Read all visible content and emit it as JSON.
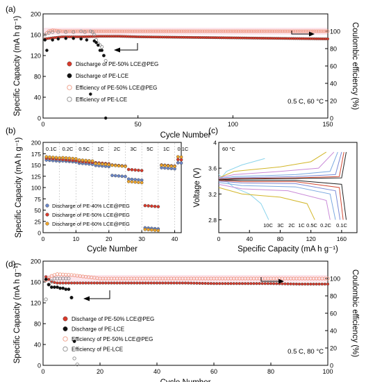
{
  "figure": {
    "panels": [
      {
        "label": "(a)",
        "type": "scatter",
        "xlabel": "Cycle Number",
        "ylabel": "Specific Capacity (mA h g⁻¹)",
        "y2label": "Coulombic efficiency (%)",
        "xlim": [
          0,
          150
        ],
        "ylim": [
          0,
          200
        ],
        "y2lim": [
          0,
          120
        ],
        "xticks": [
          0,
          50,
          100,
          150
        ],
        "yticks": [
          0,
          40,
          80,
          120,
          160,
          200
        ],
        "y2ticks": [
          0,
          20,
          40,
          60,
          80,
          100
        ],
        "condition": "0.5 C, 60 °C",
        "legend": [
          "Discharge of  PE-50% LCE@PEG",
          "Discharge of  PE-LCE",
          "Efficiency of PE-50% LCE@PEG",
          "Efficiency of PE-LCE"
        ]
      },
      {
        "label": "(b)",
        "type": "scatter",
        "xlabel": "Cycle Number",
        "ylabel": "Specific Capacity (mA h g⁻¹)",
        "xlim": [
          0,
          42
        ],
        "ylim": [
          0,
          200
        ],
        "xticks": [
          0,
          10,
          20,
          30,
          40
        ],
        "yticks": [
          0,
          25,
          50,
          75,
          100,
          125,
          150,
          175,
          200
        ],
        "rates": [
          "0.1C",
          "0.2C",
          "0.5C",
          "1C",
          "2C",
          "3C",
          "5C",
          "1C",
          "0.1C"
        ],
        "legend": [
          "Discharge of  PE-40% LCE@PEG",
          "Discharge of  PE-50% LCE@PEG",
          "Discharge of  PE-60% LCE@PEG"
        ]
      },
      {
        "label": "(c)",
        "type": "line",
        "xlabel": "Specific Capacity (mA h g⁻¹)",
        "ylabel": "Voltage (V)",
        "xlim": [
          0,
          180
        ],
        "ylim": [
          2.6,
          4.0
        ],
        "xticks": [
          0,
          40,
          80,
          120,
          160
        ],
        "yticks": [
          2.8,
          3.2,
          3.6,
          4.0
        ],
        "condition": "60 °C",
        "rate_labels": [
          "10C",
          "3C",
          "2C",
          "1C",
          "0.5C",
          "0.2C",
          "0.1C"
        ]
      },
      {
        "label": "(d)",
        "type": "scatter",
        "xlabel": "Cycle Number",
        "ylabel": "Specific Capacity (mA h g⁻¹)",
        "y2label": "Coulombic efficiency (%)",
        "xlim": [
          0,
          100
        ],
        "ylim": [
          0,
          200
        ],
        "y2lim": [
          0,
          120
        ],
        "xticks": [
          0,
          20,
          40,
          60,
          80,
          100
        ],
        "yticks": [
          0,
          40,
          80,
          120,
          160,
          200
        ],
        "y2ticks": [
          0,
          20,
          40,
          60,
          80,
          100
        ],
        "condition": "0.5 C, 80 °C",
        "legend": [
          "Discharge of  PE-50% LCE@PEG",
          "Discharge of  PE-LCE",
          "Efficiency of PE-50% LCE@PEG",
          "Efficiency of PE-LCE"
        ]
      }
    ]
  },
  "colors": {
    "red": "#d93a2b",
    "black": "#111111",
    "peach": "#ef9a84",
    "gray": "#8d8d8d",
    "blue": "#6a86c8",
    "orange": "#f0a52a",
    "band": "#f6b4c8"
  },
  "chart_data": [
    {
      "panel": "(a)",
      "type": "scatter",
      "x_unit": "cycle",
      "series": [
        {
          "name": "Discharge of  PE-50% LCE@PEG",
          "axis": "left",
          "x": [
            1,
            5,
            10,
            20,
            30,
            40,
            50,
            75,
            100,
            125,
            150
          ],
          "values": [
            152,
            154,
            156,
            156,
            157,
            157,
            156,
            155,
            154,
            153,
            152
          ]
        },
        {
          "name": "Discharge of  PE-LCE",
          "axis": "left",
          "x": [
            1,
            2,
            5,
            8,
            12,
            16,
            20,
            23,
            25,
            27,
            28,
            29,
            30,
            31,
            32,
            33
          ],
          "values": [
            150,
            130,
            150,
            152,
            153,
            153,
            152,
            150,
            46,
            148,
            145,
            140,
            130,
            130,
            120,
            0
          ]
        },
        {
          "name": "Efficiency of PE-50% LCE@PEG",
          "axis": "right",
          "x": [
            1,
            3,
            5,
            10,
            20,
            30,
            40,
            50,
            75,
            100,
            125,
            150
          ],
          "values": [
            96,
            100,
            101,
            100,
            100,
            100,
            100,
            100,
            100,
            100,
            100,
            100
          ]
        },
        {
          "name": "Efficiency of PE-LCE",
          "axis": "right",
          "x": [
            1,
            3,
            5,
            8,
            12,
            16,
            20,
            22,
            25,
            26,
            27,
            28,
            29,
            30,
            31,
            32,
            33
          ],
          "values": [
            96,
            98,
            99,
            99,
            99,
            99,
            100,
            99,
            100,
            99,
            96,
            90,
            86,
            84,
            82,
            72,
            66
          ]
        }
      ]
    },
    {
      "panel": "(b)",
      "type": "scatter",
      "categories": [
        "0.1C",
        "0.2C",
        "0.5C",
        "1C",
        "2C",
        "3C",
        "5C",
        "1C",
        "0.1C"
      ],
      "x_breaks": [
        5,
        10,
        15,
        20,
        25,
        30,
        35,
        40
      ],
      "series": [
        {
          "name": "Discharge of  PE-40% LCE@PEG",
          "values": [
            162,
            160,
            155,
            150,
            128,
            120,
            12,
            145,
            156
          ]
        },
        {
          "name": "Discharge of  PE-50% LCE@PEG",
          "values": [
            165,
            162,
            158,
            155,
            150,
            140,
            60,
            150,
            162
          ]
        },
        {
          "name": "Discharge of  PE-60% LCE@PEG",
          "values": [
            167,
            165,
            160,
            152,
            148,
            112,
            6,
            148,
            167
          ]
        }
      ]
    },
    {
      "panel": "(c)",
      "type": "line",
      "series": [
        {
          "name": "10C",
          "charge": [
            [
              0,
              3.4
            ],
            [
              10,
              3.55
            ],
            [
              30,
              3.65
            ],
            [
              60,
              3.75
            ]
          ],
          "discharge": [
            [
              0,
              3.5
            ],
            [
              20,
              3.3
            ],
            [
              40,
              3.2
            ],
            [
              55,
              3.05
            ],
            [
              65,
              2.8
            ]
          ]
        },
        {
          "name": "3C",
          "charge": [
            [
              0,
              3.45
            ],
            [
              20,
              3.55
            ],
            [
              80,
              3.62
            ],
            [
              120,
              3.7
            ],
            [
              140,
              3.85
            ]
          ],
          "discharge": [
            [
              0,
              3.3
            ],
            [
              30,
              3.2
            ],
            [
              80,
              3.15
            ],
            [
              115,
              3.05
            ],
            [
              125,
              2.8
            ]
          ]
        },
        {
          "name": "2C",
          "charge": [
            [
              0,
              3.45
            ],
            [
              20,
              3.5
            ],
            [
              80,
              3.55
            ],
            [
              130,
              3.6
            ],
            [
              150,
              3.85
            ]
          ],
          "discharge": [
            [
              0,
              3.35
            ],
            [
              30,
              3.28
            ],
            [
              90,
              3.25
            ],
            [
              140,
              3.1
            ],
            [
              145,
              2.8
            ]
          ]
        },
        {
          "name": "1C",
          "charge": [
            [
              0,
              3.44
            ],
            [
              20,
              3.47
            ],
            [
              100,
              3.5
            ],
            [
              145,
              3.55
            ],
            [
              155,
              3.85
            ]
          ],
          "discharge": [
            [
              0,
              3.38
            ],
            [
              30,
              3.33
            ],
            [
              100,
              3.31
            ],
            [
              145,
              3.2
            ],
            [
              152,
              2.8
            ]
          ]
        },
        {
          "name": "0.5C",
          "charge": [
            [
              0,
              3.43
            ],
            [
              20,
              3.45
            ],
            [
              100,
              3.47
            ],
            [
              152,
              3.5
            ],
            [
              160,
              3.85
            ]
          ],
          "discharge": [
            [
              0,
              3.4
            ],
            [
              30,
              3.37
            ],
            [
              100,
              3.36
            ],
            [
              152,
              3.25
            ],
            [
              158,
              2.8
            ]
          ]
        },
        {
          "name": "0.2C",
          "charge": [
            [
              0,
              3.43
            ],
            [
              20,
              3.44
            ],
            [
              100,
              3.45
            ],
            [
              157,
              3.47
            ],
            [
              163,
              3.85
            ]
          ],
          "discharge": [
            [
              0,
              3.41
            ],
            [
              30,
              3.39
            ],
            [
              100,
              3.39
            ],
            [
              157,
              3.3
            ],
            [
              162,
              2.8
            ]
          ]
        },
        {
          "name": "0.1C",
          "charge": [
            [
              0,
              3.42
            ],
            [
              20,
              3.43
            ],
            [
              100,
              3.44
            ],
            [
              160,
              3.45
            ],
            [
              166,
              3.85
            ]
          ],
          "discharge": [
            [
              0,
              3.42
            ],
            [
              30,
              3.41
            ],
            [
              100,
              3.41
            ],
            [
              160,
              3.35
            ],
            [
              166,
              2.8
            ]
          ]
        }
      ]
    },
    {
      "panel": "(d)",
      "type": "scatter",
      "x_unit": "cycle",
      "series": [
        {
          "name": "Discharge of  PE-50% LCE@PEG",
          "axis": "left",
          "x": [
            1,
            3,
            5,
            10,
            20,
            30,
            40,
            50,
            60,
            70,
            80,
            90,
            100
          ],
          "values": [
            170,
            160,
            158,
            158,
            158,
            158,
            158,
            158,
            157,
            157,
            157,
            156,
            156
          ]
        },
        {
          "name": "Discharge of  PE-LCE",
          "axis": "left",
          "x": [
            1,
            2,
            3,
            4,
            5,
            6,
            7,
            8,
            9,
            10,
            11
          ],
          "values": [
            165,
            155,
            150,
            150,
            150,
            148,
            148,
            146,
            146,
            130,
            46
          ]
        },
        {
          "name": "Efficiency of PE-50% LCE@PEG",
          "axis": "right",
          "x": [
            1,
            3,
            5,
            10,
            20,
            30,
            40,
            50,
            60,
            70,
            80,
            90,
            100
          ],
          "values": [
            98,
            103,
            105,
            104,
            100,
            100,
            100,
            100,
            100,
            100,
            100,
            100,
            100
          ]
        },
        {
          "name": "Efficiency of PE-LCE",
          "axis": "right",
          "x": [
            1,
            2,
            3,
            4,
            5,
            6,
            7,
            8,
            9,
            10,
            11,
            12
          ],
          "values": [
            76,
            93,
            97,
            100,
            100,
            100,
            100,
            100,
            100,
            78,
            8,
            1
          ]
        }
      ]
    }
  ]
}
